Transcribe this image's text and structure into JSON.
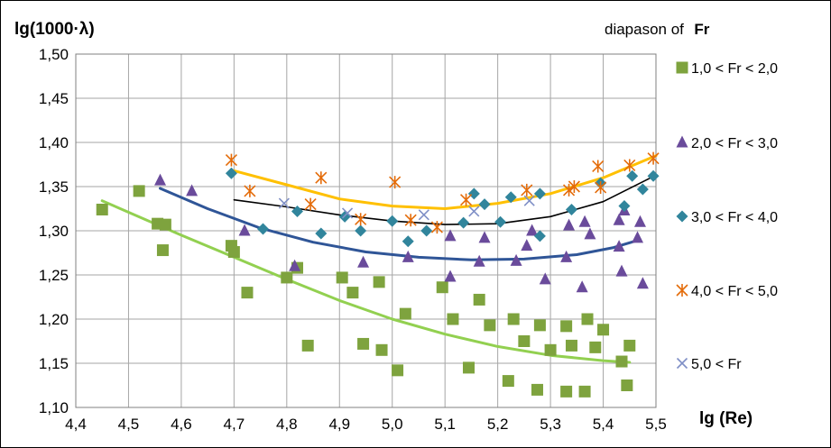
{
  "chart_data": {
    "type": "scatter",
    "ylabel": "lg(1000·λ)",
    "xlabel": "lg (Re)",
    "legend_title_prefix": "diapason of",
    "legend_title_bold": "Fr",
    "legend_position": "right",
    "grid": true,
    "xlim": [
      4.4,
      5.5
    ],
    "ylim": [
      1.1,
      1.5
    ],
    "xticks": [
      "4,4",
      "4,5",
      "4,6",
      "4,7",
      "4,8",
      "4,9",
      "5,0",
      "5,1",
      "5,2",
      "5,3",
      "5,4",
      "5,5"
    ],
    "yticks": [
      "1,10",
      "1,15",
      "1,20",
      "1,25",
      "1,30",
      "1,35",
      "1,40",
      "1,45",
      "1,50"
    ],
    "series": [
      {
        "name": "1,0 < Fr < 2,0",
        "color": "#7ea33e",
        "marker": "square",
        "points": [
          [
            4.45,
            1.324
          ],
          [
            4.52,
            1.345
          ],
          [
            4.555,
            1.308
          ],
          [
            4.565,
            1.278
          ],
          [
            4.57,
            1.307
          ],
          [
            4.695,
            1.283
          ],
          [
            4.7,
            1.276
          ],
          [
            4.725,
            1.23
          ],
          [
            4.8,
            1.247
          ],
          [
            4.82,
            1.258
          ],
          [
            4.84,
            1.17
          ],
          [
            4.905,
            1.247
          ],
          [
            4.925,
            1.23
          ],
          [
            4.945,
            1.172
          ],
          [
            4.975,
            1.242
          ],
          [
            4.98,
            1.165
          ],
          [
            5.01,
            1.142
          ],
          [
            5.025,
            1.206
          ],
          [
            5.095,
            1.236
          ],
          [
            5.115,
            1.2
          ],
          [
            5.145,
            1.145
          ],
          [
            5.165,
            1.222
          ],
          [
            5.185,
            1.193
          ],
          [
            5.22,
            1.13
          ],
          [
            5.23,
            1.2
          ],
          [
            5.25,
            1.175
          ],
          [
            5.275,
            1.12
          ],
          [
            5.28,
            1.193
          ],
          [
            5.3,
            1.165
          ],
          [
            5.33,
            1.118
          ],
          [
            5.33,
            1.192
          ],
          [
            5.34,
            1.17
          ],
          [
            5.365,
            1.118
          ],
          [
            5.37,
            1.2
          ],
          [
            5.385,
            1.168
          ],
          [
            5.4,
            1.188
          ],
          [
            5.435,
            1.152
          ],
          [
            5.445,
            1.125
          ],
          [
            5.45,
            1.17
          ]
        ]
      },
      {
        "name": "2,0 < Fr < 3,0",
        "color": "#6a4b9b",
        "marker": "triangle",
        "points": [
          [
            4.56,
            1.357
          ],
          [
            4.62,
            1.345
          ],
          [
            4.72,
            1.3
          ],
          [
            4.815,
            1.26
          ],
          [
            4.945,
            1.264
          ],
          [
            5.03,
            1.27
          ],
          [
            5.11,
            1.294
          ],
          [
            5.11,
            1.248
          ],
          [
            5.165,
            1.265
          ],
          [
            5.175,
            1.292
          ],
          [
            5.235,
            1.266
          ],
          [
            5.255,
            1.283
          ],
          [
            5.265,
            1.3
          ],
          [
            5.29,
            1.245
          ],
          [
            5.33,
            1.27
          ],
          [
            5.335,
            1.306
          ],
          [
            5.36,
            1.236
          ],
          [
            5.365,
            1.31
          ],
          [
            5.375,
            1.296
          ],
          [
            5.43,
            1.312
          ],
          [
            5.43,
            1.282
          ],
          [
            5.435,
            1.254
          ],
          [
            5.44,
            1.323
          ],
          [
            5.465,
            1.292
          ],
          [
            5.47,
            1.31
          ],
          [
            5.475,
            1.24
          ]
        ]
      },
      {
        "name": "3,0 < Fr < 4,0",
        "color": "#31859c",
        "marker": "diamond",
        "points": [
          [
            4.695,
            1.365
          ],
          [
            4.755,
            1.302
          ],
          [
            4.82,
            1.322
          ],
          [
            4.865,
            1.297
          ],
          [
            4.91,
            1.316
          ],
          [
            4.94,
            1.3
          ],
          [
            5.0,
            1.311
          ],
          [
            5.03,
            1.288
          ],
          [
            5.065,
            1.3
          ],
          [
            5.135,
            1.309
          ],
          [
            5.155,
            1.342
          ],
          [
            5.175,
            1.33
          ],
          [
            5.205,
            1.31
          ],
          [
            5.225,
            1.338
          ],
          [
            5.28,
            1.294
          ],
          [
            5.28,
            1.342
          ],
          [
            5.34,
            1.324
          ],
          [
            5.395,
            1.354
          ],
          [
            5.44,
            1.328
          ],
          [
            5.455,
            1.362
          ],
          [
            5.475,
            1.347
          ],
          [
            5.495,
            1.362
          ]
        ]
      },
      {
        "name": "4,0 < Fr < 5,0",
        "color": "#e46c0a",
        "marker": "star",
        "points": [
          [
            4.695,
            1.38
          ],
          [
            4.73,
            1.345
          ],
          [
            4.845,
            1.33
          ],
          [
            4.865,
            1.36
          ],
          [
            4.94,
            1.313
          ],
          [
            5.005,
            1.355
          ],
          [
            5.035,
            1.312
          ],
          [
            5.085,
            1.304
          ],
          [
            5.14,
            1.335
          ],
          [
            5.255,
            1.346
          ],
          [
            5.335,
            1.346
          ],
          [
            5.345,
            1.35
          ],
          [
            5.39,
            1.373
          ],
          [
            5.395,
            1.349
          ],
          [
            5.45,
            1.374
          ],
          [
            5.495,
            1.382
          ]
        ]
      },
      {
        "name": "5,0 < Fr",
        "color": "#7f8fc6",
        "marker": "x",
        "points": [
          [
            4.795,
            1.331
          ],
          [
            4.915,
            1.32
          ],
          [
            5.06,
            1.318
          ],
          [
            5.155,
            1.322
          ],
          [
            5.26,
            1.334
          ]
        ]
      }
    ],
    "trendlines": [
      {
        "series": "1,0 < Fr < 2,0",
        "color": "#92d050",
        "x_range": [
          4.45,
          5.45
        ],
        "points": [
          [
            4.45,
            1.334
          ],
          [
            4.6,
            1.295
          ],
          [
            4.7,
            1.27
          ],
          [
            4.8,
            1.245
          ],
          [
            4.9,
            1.221
          ],
          [
            5.0,
            1.2
          ],
          [
            5.1,
            1.183
          ],
          [
            5.2,
            1.169
          ],
          [
            5.3,
            1.159
          ],
          [
            5.4,
            1.153
          ],
          [
            5.45,
            1.151
          ]
        ]
      },
      {
        "series": "2,0 < Fr < 3,0",
        "color": "#2f5597",
        "x_range": [
          4.56,
          5.47
        ],
        "points": [
          [
            4.56,
            1.348
          ],
          [
            4.65,
            1.325
          ],
          [
            4.75,
            1.303
          ],
          [
            4.85,
            1.287
          ],
          [
            4.95,
            1.276
          ],
          [
            5.05,
            1.27
          ],
          [
            5.15,
            1.267
          ],
          [
            5.25,
            1.268
          ],
          [
            5.35,
            1.273
          ],
          [
            5.42,
            1.281
          ],
          [
            5.47,
            1.29
          ]
        ]
      },
      {
        "series": "3,0 < Fr < 4,0",
        "color": "#000000",
        "x_range": [
          4.7,
          5.5
        ],
        "points": [
          [
            4.7,
            1.335
          ],
          [
            4.8,
            1.327
          ],
          [
            4.9,
            1.318
          ],
          [
            5.0,
            1.311
          ],
          [
            5.1,
            1.307
          ],
          [
            5.2,
            1.308
          ],
          [
            5.3,
            1.316
          ],
          [
            5.4,
            1.333
          ],
          [
            5.5,
            1.363
          ]
        ]
      },
      {
        "series": "4,0 < Fr < 5,0",
        "color": "#ffc000",
        "x_range": [
          4.7,
          5.5
        ],
        "points": [
          [
            4.7,
            1.368
          ],
          [
            4.8,
            1.352
          ],
          [
            4.9,
            1.336
          ],
          [
            5.0,
            1.328
          ],
          [
            5.1,
            1.325
          ],
          [
            5.2,
            1.331
          ],
          [
            5.3,
            1.342
          ],
          [
            5.4,
            1.36
          ],
          [
            5.5,
            1.385
          ]
        ]
      }
    ]
  }
}
